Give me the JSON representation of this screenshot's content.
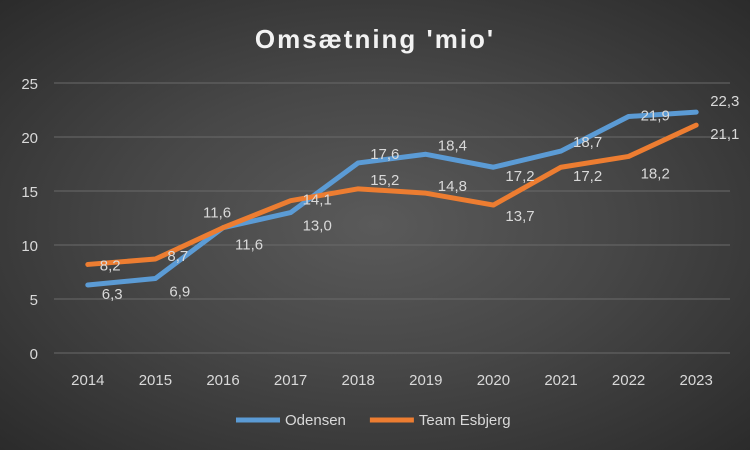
{
  "chart_data": {
    "type": "line",
    "title": "Omsætning 'mio'",
    "xlabel": "",
    "ylabel": "",
    "categories": [
      "2014",
      "2015",
      "2016",
      "2017",
      "2018",
      "2019",
      "2020",
      "2021",
      "2022",
      "2023"
    ],
    "ylim": [
      0,
      25
    ],
    "yticks": [
      0,
      5,
      10,
      15,
      20,
      25
    ],
    "grid": true,
    "legend": "bottom",
    "series": [
      {
        "name": "Odensen",
        "color": "#5b9bd5",
        "values": [
          6.3,
          6.9,
          11.6,
          13.0,
          17.6,
          18.4,
          17.2,
          18.7,
          21.9,
          22.3
        ],
        "labels": [
          "6,3",
          "6,9",
          "11,6",
          "13,0",
          "17,6",
          "18,4",
          "17,2",
          "18,7",
          "21,9",
          "22,3"
        ]
      },
      {
        "name": "Team Esbjerg",
        "color": "#ed7d31",
        "values": [
          8.2,
          8.7,
          11.6,
          14.1,
          15.2,
          14.8,
          13.7,
          17.2,
          18.2,
          21.1
        ],
        "labels": [
          "8,2",
          "8,7",
          "11,6",
          "14,1",
          "15,2",
          "14,8",
          "13,7",
          "17,2",
          "18,2",
          "21,1"
        ]
      }
    ]
  }
}
